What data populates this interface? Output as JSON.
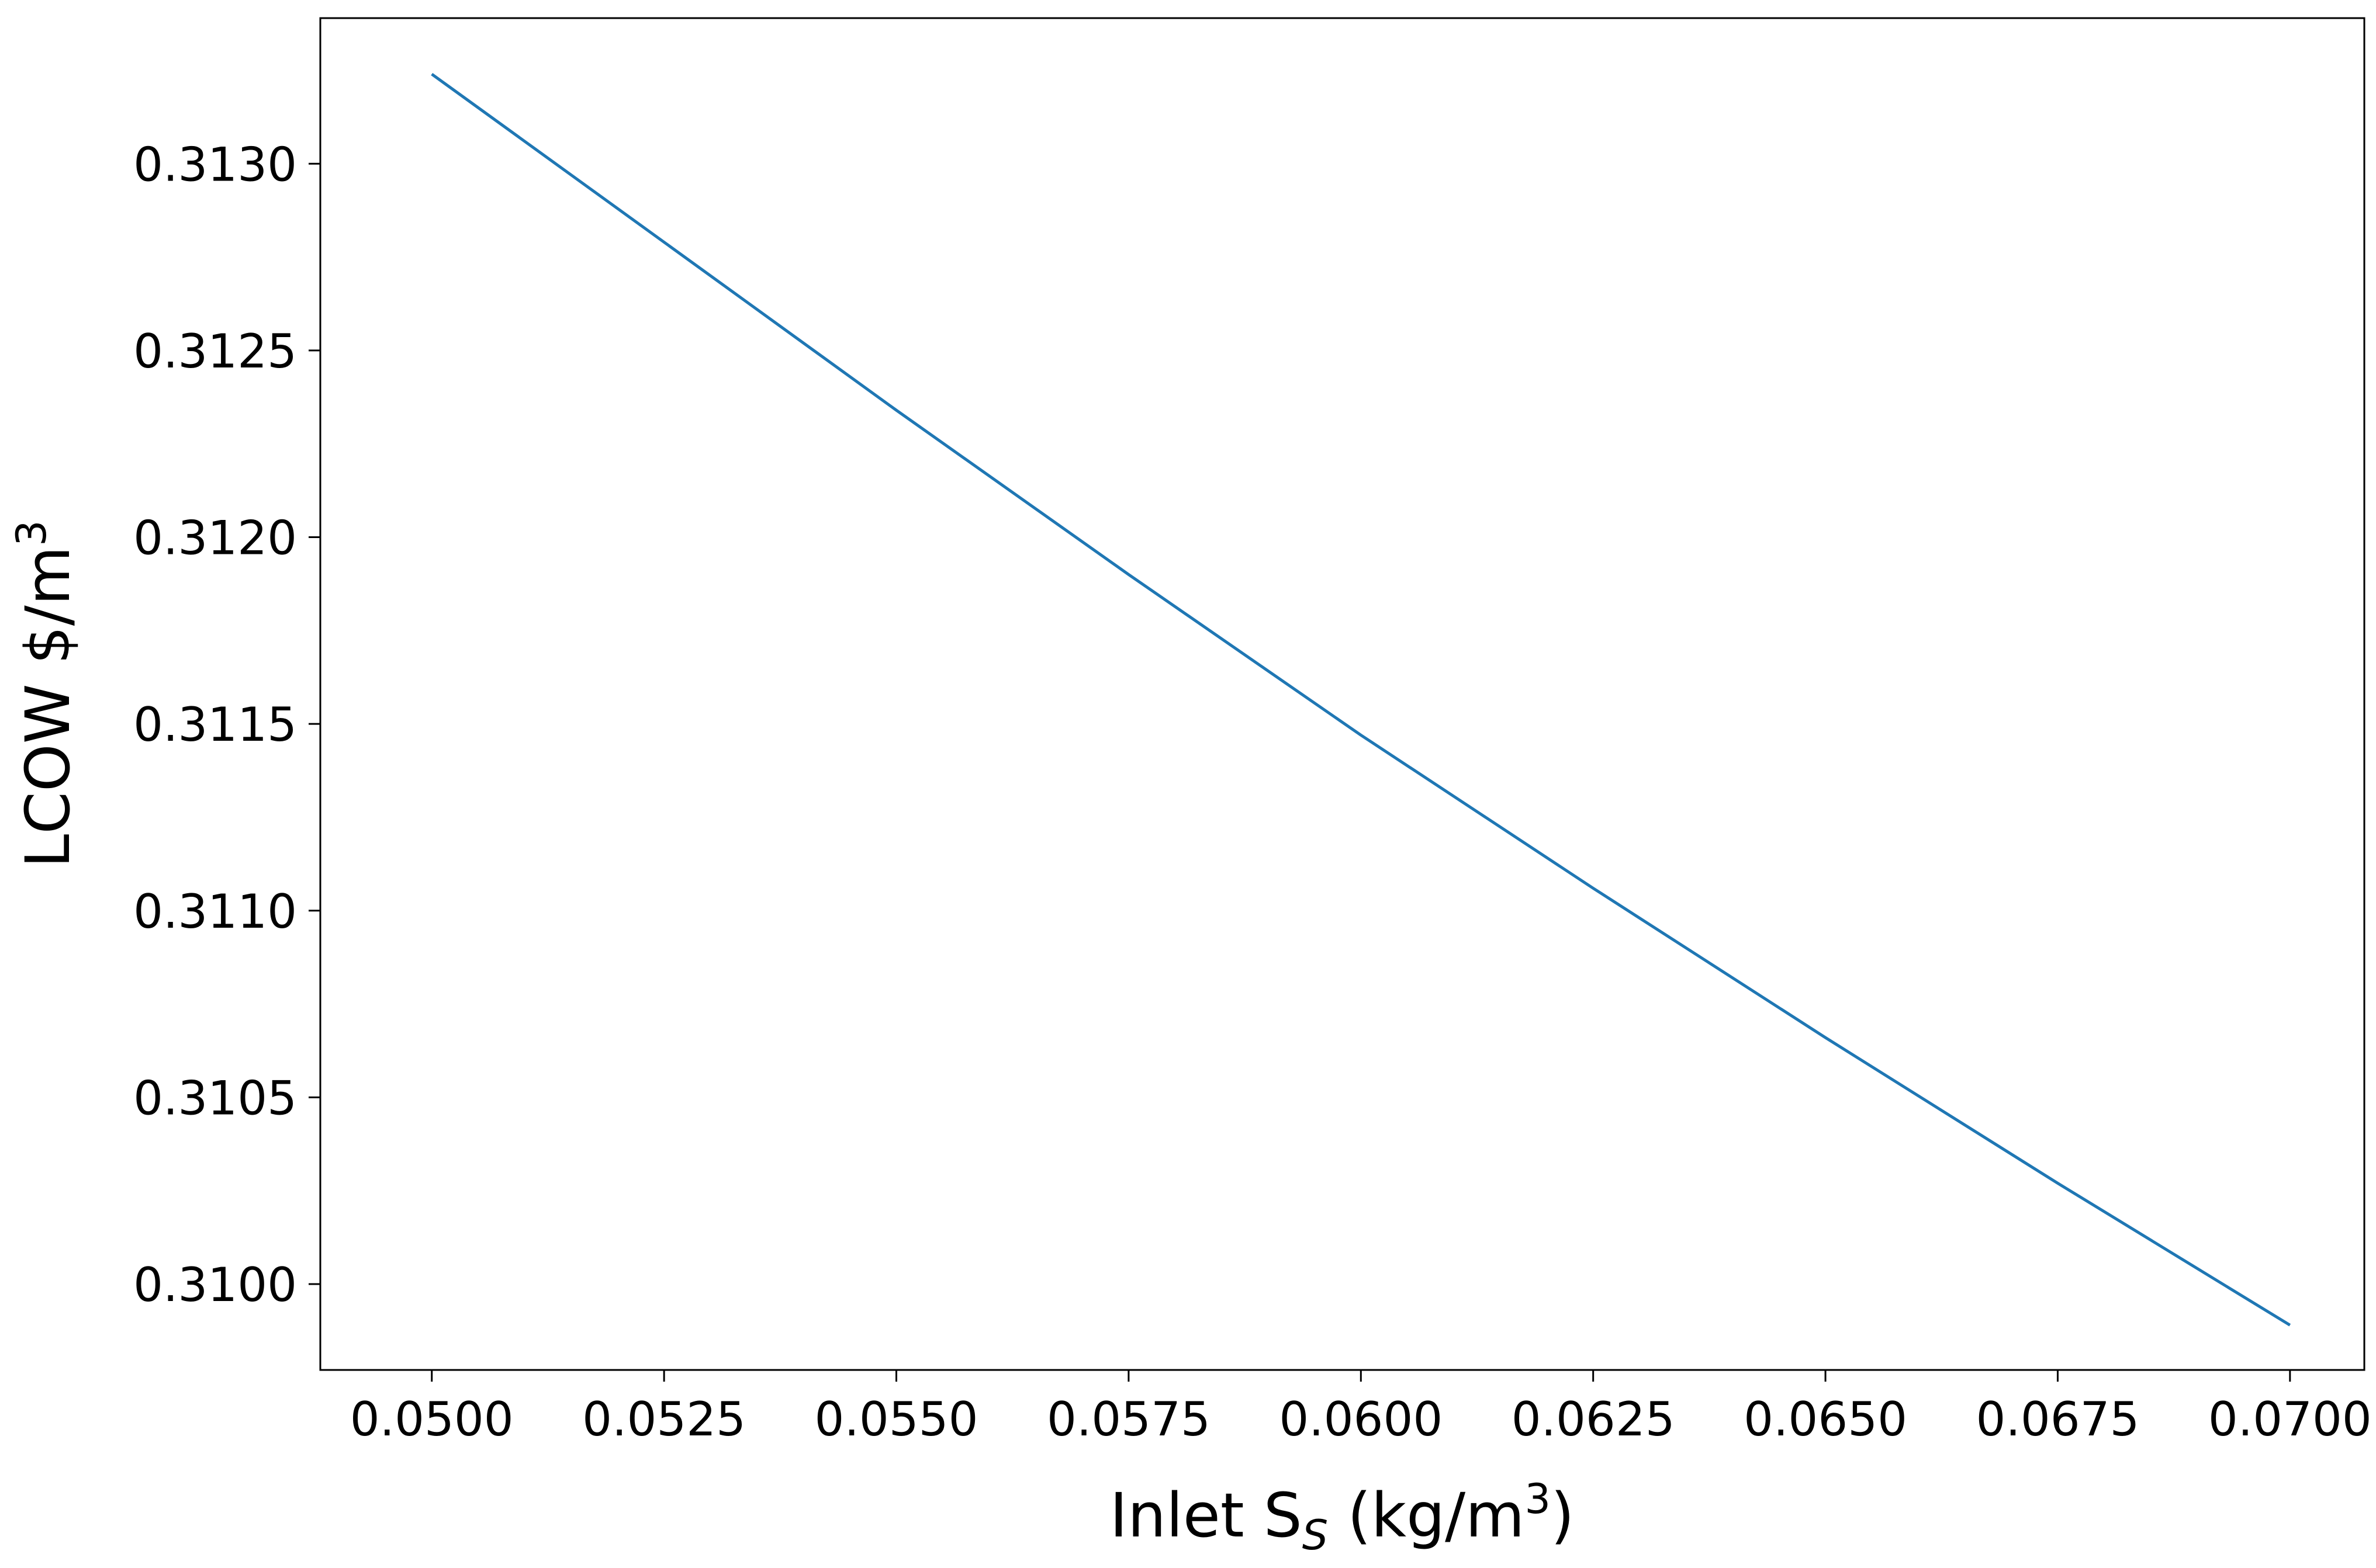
{
  "chart_data": {
    "type": "line",
    "title": "",
    "xlabel": {
      "main": "Inlet S",
      "sub": "S",
      "unit_prefix": " (kg/m",
      "sup": "3",
      "unit_suffix": ")"
    },
    "ylabel": {
      "main": "LCOW $/m",
      "sup": "3"
    },
    "xlim": [
      0.0488,
      0.0708
    ],
    "ylim": [
      0.30977,
      0.31339
    ],
    "xticks": [
      0.05,
      0.0525,
      0.055,
      0.0575,
      0.06,
      0.0625,
      0.065,
      0.0675,
      0.07
    ],
    "xtick_labels": [
      "0.0500",
      "0.0525",
      "0.0550",
      "0.0575",
      "0.0600",
      "0.0625",
      "0.0650",
      "0.0675",
      "0.0700"
    ],
    "yticks": [
      0.31,
      0.3105,
      0.311,
      0.3115,
      0.312,
      0.3125,
      0.313
    ],
    "ytick_labels": [
      "0.3100",
      "0.3105",
      "0.3110",
      "0.3115",
      "0.3120",
      "0.3125",
      "0.3130"
    ],
    "grid": false,
    "series": [
      {
        "color": "#1f77b4",
        "x": [
          0.05,
          0.0525,
          0.055,
          0.0575,
          0.06,
          0.0625,
          0.065,
          0.0675,
          0.07
        ],
        "y": [
          0.31324,
          0.31279,
          0.31234,
          0.3119,
          0.31147,
          0.31106,
          0.31066,
          0.31027,
          0.30989
        ]
      }
    ]
  }
}
